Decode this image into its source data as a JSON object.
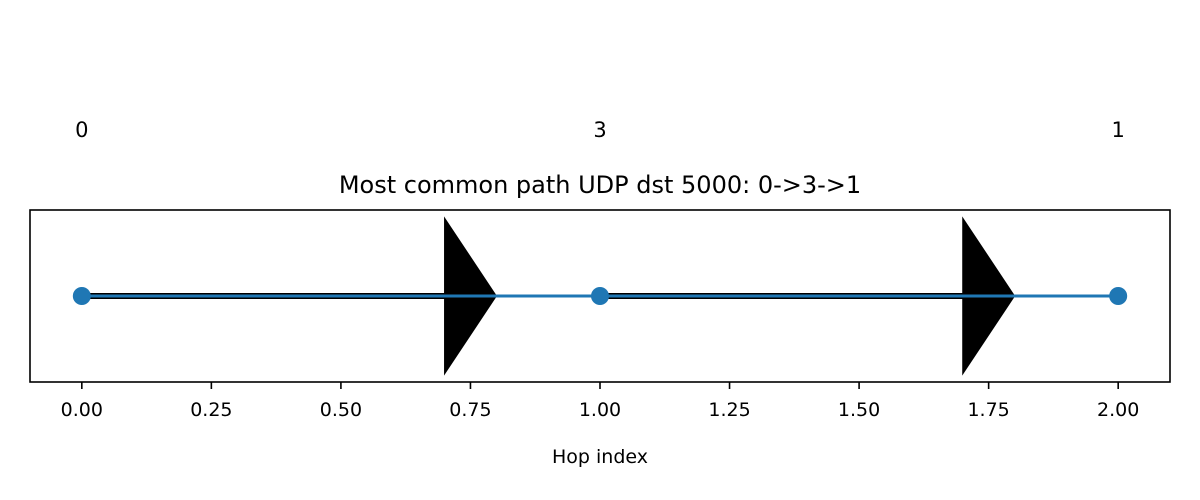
{
  "chart_data": {
    "type": "line",
    "title": "Most common path UDP dst 5000: 0->3->1",
    "xlabel": "Hop index",
    "ylabel": "",
    "xlim": [
      -0.1,
      2.1
    ],
    "ylim": [
      -0.055,
      0.055
    ],
    "x_ticks": [
      0.0,
      0.25,
      0.5,
      0.75,
      1.0,
      1.25,
      1.5,
      1.75,
      2.0
    ],
    "x_tick_labels": [
      "0.00",
      "0.25",
      "0.50",
      "0.75",
      "1.00",
      "1.25",
      "1.50",
      "1.75",
      "2.00"
    ],
    "grid": false,
    "legend": "none",
    "series": [
      {
        "x": [
          0,
          1,
          2
        ],
        "y": [
          0,
          0,
          0
        ],
        "color": "#1f77b4",
        "marker": "circle"
      }
    ],
    "node_labels": [
      {
        "x": 0,
        "label": "0"
      },
      {
        "x": 1,
        "label": "3"
      },
      {
        "x": 2,
        "label": "1"
      }
    ],
    "arrows": [
      {
        "from": 0,
        "to": 0.8,
        "color": "#000000"
      },
      {
        "from": 1,
        "to": 1.8,
        "color": "#000000"
      }
    ]
  }
}
